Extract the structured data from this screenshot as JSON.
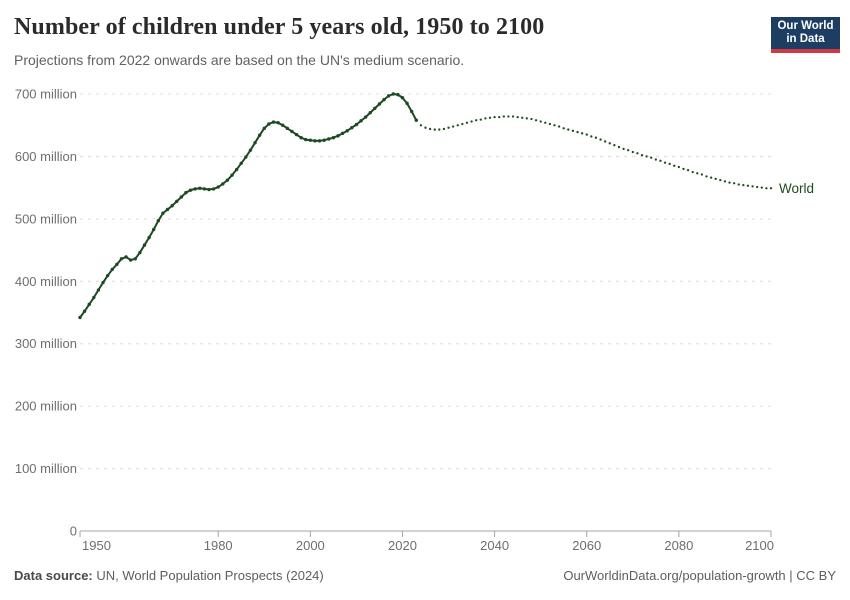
{
  "header": {
    "title": "Number of children under 5 years old, 1950 to 2100",
    "subtitle": "Projections from 2022 onwards are based on the UN's medium scenario."
  },
  "logo": {
    "line1": "Our World",
    "line2": "in Data",
    "bg_color": "#1d3d63",
    "accent_color": "#cf3943",
    "text_color": "#ffffff"
  },
  "chart_data": {
    "type": "line",
    "title": "Number of children under 5 years old, 1950 to 2100",
    "subtitle": "Projections from 2022 onwards are based on the UN's medium scenario.",
    "unit": "million",
    "entity_label": "World",
    "xlabel": "",
    "ylabel": "",
    "xlim": [
      1950,
      2100
    ],
    "ylim": [
      0,
      700
    ],
    "grid": "horizontal-dashed",
    "legend_position": "end-of-line-label",
    "x_ticks": [
      1950,
      1980,
      2000,
      2020,
      2040,
      2060,
      2080,
      2100
    ],
    "y_ticks": [
      {
        "value": 0,
        "label": "0"
      },
      {
        "value": 100,
        "label": "100 million"
      },
      {
        "value": 200,
        "label": "200 million"
      },
      {
        "value": 300,
        "label": "300 million"
      },
      {
        "value": 400,
        "label": "400 million"
      },
      {
        "value": 500,
        "label": "500 million"
      },
      {
        "value": 600,
        "label": "600 million"
      },
      {
        "value": 700,
        "label": "700 million"
      }
    ],
    "line_color": "#1d4a21",
    "series": [
      {
        "name": "World — estimates",
        "style": "solid-with-markers",
        "points": [
          [
            1950,
            342
          ],
          [
            1951,
            352
          ],
          [
            1952,
            363
          ],
          [
            1953,
            374
          ],
          [
            1954,
            386
          ],
          [
            1955,
            398
          ],
          [
            1956,
            409
          ],
          [
            1957,
            419
          ],
          [
            1958,
            427
          ],
          [
            1959,
            436
          ],
          [
            1960,
            439
          ],
          [
            1961,
            434
          ],
          [
            1962,
            436
          ],
          [
            1963,
            446
          ],
          [
            1964,
            458
          ],
          [
            1965,
            470
          ],
          [
            1966,
            483
          ],
          [
            1967,
            497
          ],
          [
            1968,
            509
          ],
          [
            1969,
            515
          ],
          [
            1970,
            521
          ],
          [
            1971,
            528
          ],
          [
            1972,
            535
          ],
          [
            1973,
            542
          ],
          [
            1974,
            546
          ],
          [
            1975,
            548
          ],
          [
            1976,
            549
          ],
          [
            1977,
            548
          ],
          [
            1978,
            547
          ],
          [
            1979,
            548
          ],
          [
            1980,
            551
          ],
          [
            1981,
            556
          ],
          [
            1982,
            562
          ],
          [
            1983,
            570
          ],
          [
            1984,
            579
          ],
          [
            1985,
            589
          ],
          [
            1986,
            599
          ],
          [
            1987,
            610
          ],
          [
            1988,
            622
          ],
          [
            1989,
            634
          ],
          [
            1990,
            645
          ],
          [
            1991,
            652
          ],
          [
            1992,
            655
          ],
          [
            1993,
            654
          ],
          [
            1994,
            650
          ],
          [
            1995,
            645
          ],
          [
            1996,
            640
          ],
          [
            1997,
            635
          ],
          [
            1998,
            630
          ],
          [
            1999,
            627
          ],
          [
            2000,
            626
          ],
          [
            2001,
            625
          ],
          [
            2002,
            625
          ],
          [
            2003,
            626
          ],
          [
            2004,
            628
          ],
          [
            2005,
            630
          ],
          [
            2006,
            633
          ],
          [
            2007,
            637
          ],
          [
            2008,
            641
          ],
          [
            2009,
            646
          ],
          [
            2010,
            651
          ],
          [
            2011,
            657
          ],
          [
            2012,
            663
          ],
          [
            2013,
            670
          ],
          [
            2014,
            677
          ],
          [
            2015,
            684
          ],
          [
            2016,
            691
          ],
          [
            2017,
            697
          ],
          [
            2018,
            700
          ],
          [
            2019,
            699
          ],
          [
            2020,
            694
          ],
          [
            2021,
            685
          ],
          [
            2022,
            672
          ],
          [
            2023,
            658
          ]
        ]
      },
      {
        "name": "World — UN medium scenario projection",
        "style": "dotted",
        "points": [
          [
            2023,
            658
          ],
          [
            2024,
            650
          ],
          [
            2025,
            646
          ],
          [
            2026,
            644
          ],
          [
            2027,
            643
          ],
          [
            2028,
            643
          ],
          [
            2029,
            644
          ],
          [
            2030,
            646
          ],
          [
            2031,
            648
          ],
          [
            2032,
            650
          ],
          [
            2033,
            652
          ],
          [
            2034,
            654
          ],
          [
            2035,
            656
          ],
          [
            2036,
            658
          ],
          [
            2037,
            659
          ],
          [
            2038,
            661
          ],
          [
            2039,
            662
          ],
          [
            2040,
            663
          ],
          [
            2041,
            663
          ],
          [
            2042,
            664
          ],
          [
            2043,
            664
          ],
          [
            2044,
            664
          ],
          [
            2045,
            663
          ],
          [
            2046,
            662
          ],
          [
            2047,
            661
          ],
          [
            2048,
            660
          ],
          [
            2049,
            658
          ],
          [
            2050,
            656
          ],
          [
            2051,
            654
          ],
          [
            2052,
            652
          ],
          [
            2053,
            650
          ],
          [
            2054,
            648
          ],
          [
            2055,
            645
          ],
          [
            2056,
            643
          ],
          [
            2057,
            641
          ],
          [
            2058,
            639
          ],
          [
            2059,
            637
          ],
          [
            2060,
            635
          ],
          [
            2061,
            632
          ],
          [
            2062,
            630
          ],
          [
            2063,
            627
          ],
          [
            2064,
            624
          ],
          [
            2065,
            621
          ],
          [
            2066,
            618
          ],
          [
            2067,
            615
          ],
          [
            2068,
            612
          ],
          [
            2069,
            610
          ],
          [
            2070,
            607
          ],
          [
            2071,
            605
          ],
          [
            2072,
            602
          ],
          [
            2073,
            600
          ],
          [
            2074,
            598
          ],
          [
            2075,
            595
          ],
          [
            2076,
            593
          ],
          [
            2077,
            590
          ],
          [
            2078,
            588
          ],
          [
            2079,
            585
          ],
          [
            2080,
            583
          ],
          [
            2081,
            580
          ],
          [
            2082,
            578
          ],
          [
            2083,
            575
          ],
          [
            2084,
            573
          ],
          [
            2085,
            571
          ],
          [
            2086,
            568
          ],
          [
            2087,
            566
          ],
          [
            2088,
            564
          ],
          [
            2089,
            562
          ],
          [
            2090,
            560
          ],
          [
            2091,
            558
          ],
          [
            2092,
            557
          ],
          [
            2093,
            555
          ],
          [
            2094,
            554
          ],
          [
            2095,
            553
          ],
          [
            2096,
            552
          ],
          [
            2097,
            551
          ],
          [
            2098,
            550
          ],
          [
            2099,
            549
          ],
          [
            2100,
            549
          ]
        ]
      }
    ]
  },
  "footer": {
    "datasource_label": "Data source:",
    "datasource_value": " UN, World Population Prospects (2024)",
    "right": "OurWorldinData.org/population-growth | CC BY"
  },
  "colors": {
    "line": "#1d4a21",
    "gridline": "#dcdcdc",
    "axis": "#a5a5a5",
    "tick_label": "#6e6e6e",
    "title": "#2b2b2b",
    "subtitle": "#616161",
    "footer_text": "#5e5e5e"
  }
}
